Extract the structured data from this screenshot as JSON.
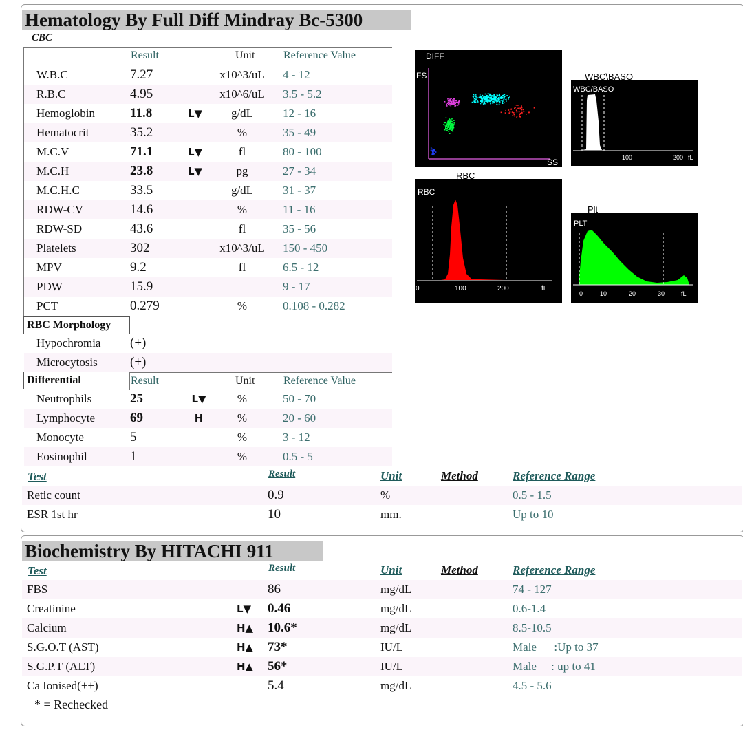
{
  "hematology": {
    "title": "Hematology By Full Diff Mindray Bc-5300",
    "cbc_label": "CBC",
    "headers": {
      "result": "Result",
      "unit": "Unit",
      "reference": "Reference Value"
    },
    "cbc_rows": [
      {
        "name": "W.B.C",
        "result": "7.27",
        "flag": "",
        "unit": "x10^3/uL",
        "ref": "4 - 12",
        "bold": false
      },
      {
        "name": "R.B.C",
        "result": "4.95",
        "flag": "",
        "unit": "x10^6/uL",
        "ref": "3.5 - 5.2",
        "bold": false
      },
      {
        "name": "Hemoglobin",
        "result": "11.8",
        "flag": "L▼",
        "unit": "g/dL",
        "ref": "12 - 16",
        "bold": true
      },
      {
        "name": "Hematocrit",
        "result": "35.2",
        "flag": "",
        "unit": "%",
        "ref": "35 - 49",
        "bold": false
      },
      {
        "name": "M.C.V",
        "result": "71.1",
        "flag": "L▼",
        "unit": "fl",
        "ref": "80 - 100",
        "bold": true
      },
      {
        "name": "M.C.H",
        "result": "23.8",
        "flag": "L▼",
        "unit": "pg",
        "ref": "27 - 34",
        "bold": true
      },
      {
        "name": "M.C.H.C",
        "result": "33.5",
        "flag": "",
        "unit": "g/dL",
        "ref": "31 - 37",
        "bold": false
      },
      {
        "name": "RDW-CV",
        "result": "14.6",
        "flag": "",
        "unit": "%",
        "ref": "11 - 16",
        "bold": false
      },
      {
        "name": "RDW-SD",
        "result": "43.6",
        "flag": "",
        "unit": "fl",
        "ref": "35 - 56",
        "bold": false
      },
      {
        "name": "Platelets",
        "result": "302",
        "flag": "",
        "unit": "x10^3/uL",
        "ref": "150 - 450",
        "bold": false
      },
      {
        "name": "MPV",
        "result": "9.2",
        "flag": "",
        "unit": "fl",
        "ref": "6.5 - 12",
        "bold": false
      },
      {
        "name": "PDW",
        "result": "15.9",
        "flag": "",
        "unit": "",
        "ref": "9 - 17",
        "bold": false
      },
      {
        "name": "PCT",
        "result": "0.279",
        "flag": "",
        "unit": "%",
        "ref": "0.108 - 0.282",
        "bold": false
      }
    ],
    "morphology_label": "RBC Morphology",
    "morphology_rows": [
      {
        "name": "Hypochromia",
        "result": "(+)"
      },
      {
        "name": "Microcytosis",
        "result": "(+)"
      }
    ],
    "differential_label": "Differential",
    "differential_headers": {
      "result": "Result",
      "unit": "Unit",
      "reference": "Reference Value"
    },
    "differential_rows": [
      {
        "name": "Neutrophils",
        "result": "25",
        "flag": "L▼",
        "unit": "%",
        "ref": "50 - 70",
        "bold": true
      },
      {
        "name": "Lymphocyte",
        "result": "69",
        "flag": "H",
        "unit": "%",
        "ref": "20 - 60",
        "bold": true
      },
      {
        "name": "Monocyte",
        "result": "5",
        "flag": "",
        "unit": "%",
        "ref": "3 - 12",
        "bold": false
      },
      {
        "name": "Eosinophil",
        "result": "1",
        "flag": "",
        "unit": "%",
        "ref": "0.5 - 5",
        "bold": false
      }
    ],
    "test_headers": {
      "test": "Test",
      "result": "Result",
      "unit": "Unit",
      "method": "Method",
      "reference": "Reference Range"
    },
    "test_rows": [
      {
        "name": "Retic count",
        "result": "0.9",
        "unit": "%",
        "ref": "0.5 - 1.5"
      },
      {
        "name": "ESR 1st hr",
        "result": "10",
        "unit": "mm.",
        "ref": "Up to 10"
      }
    ],
    "graphs": {
      "diff": {
        "label": "DIFF",
        "y_axis": "FS",
        "x_axis": "SS"
      },
      "wbc_baso": {
        "caption": "WBC\\BASO",
        "label": "WBC/BASO",
        "ticks": [
          "100",
          "200",
          "fL"
        ]
      },
      "rbc": {
        "caption": "RBC",
        "label": "RBC",
        "ticks": [
          "0",
          "100",
          "200",
          "fL"
        ]
      },
      "plt": {
        "caption": "Plt",
        "label": "PLT",
        "ticks": [
          "0",
          "10",
          "20",
          "30",
          "fL"
        ]
      }
    }
  },
  "biochemistry": {
    "title": "Biochemistry By HITACHI 911",
    "headers": {
      "test": "Test",
      "result": "Result",
      "unit": "Unit",
      "method": "Method",
      "reference": "Reference Range"
    },
    "rows": [
      {
        "name": "FBS",
        "flag": "",
        "result": "86",
        "unit": "mg/dL",
        "ref": "74 - 127",
        "bold": false
      },
      {
        "name": "Creatinine",
        "flag": "L▼",
        "result": "0.46",
        "unit": "mg/dL",
        "ref": "0.6-1.4",
        "bold": true
      },
      {
        "name": "Calcium",
        "flag": "H▲",
        "result": "10.6*",
        "unit": "mg/dL",
        "ref": "8.5-10.5",
        "bold": true
      },
      {
        "name": "S.G.O.T (AST)",
        "flag": "H▲",
        "result": "73*",
        "unit": "IU/L",
        "ref": "Male      :Up to 37",
        "bold": true
      },
      {
        "name": "S.G.P.T (ALT)",
        "flag": "H▲",
        "result": "56*",
        "unit": "IU/L",
        "ref": "Male     : up to 41",
        "bold": true
      },
      {
        "name": "Ca Ionised(++)",
        "flag": "",
        "result": "5.4",
        "unit": "mg/dL",
        "ref": "4.5 - 5.6",
        "bold": false
      }
    ],
    "footnote": "* = Rechecked"
  },
  "colors": {
    "title_bg": "#c8c8c8",
    "row_alt": "#fbf4fa",
    "ref_text": "#3c6e6e",
    "rbc_curve": "#ff0000",
    "plt_curve": "#00ff00",
    "wbc_curve": "#ffffff"
  }
}
